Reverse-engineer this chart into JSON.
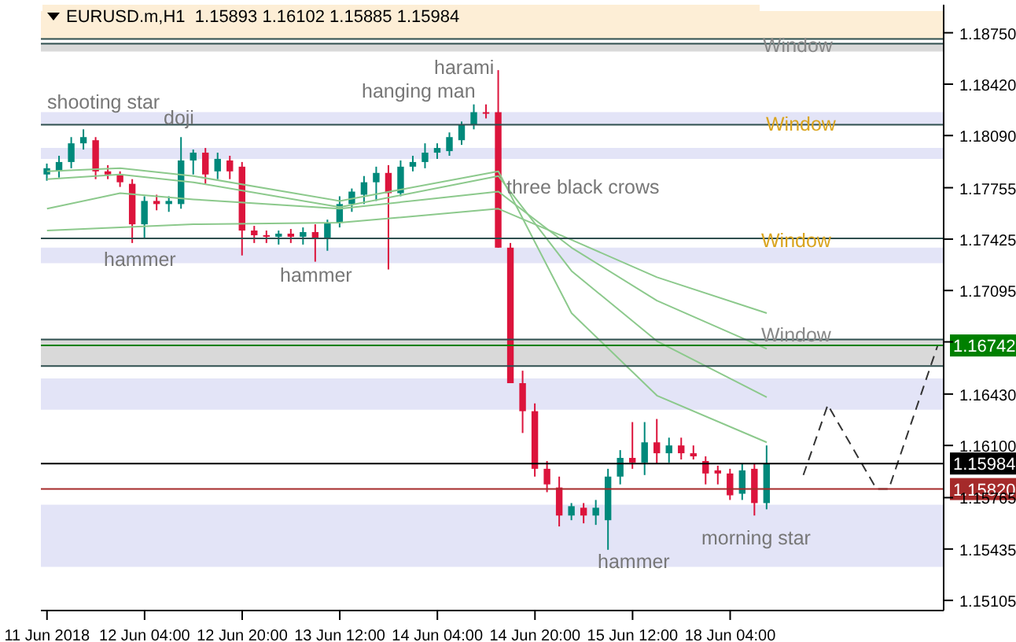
{
  "chart_data": {
    "type": "candlestick",
    "title": "EURUSD.m,H1  1.15893 1.16102 1.15885 1.15984",
    "categories": [
      "11 Jun 2018",
      null,
      null,
      null,
      null,
      null,
      null,
      null,
      "12 Jun 04:00",
      null,
      null,
      null,
      null,
      null,
      null,
      null,
      "12 Jun 20:00",
      null,
      null,
      null,
      null,
      null,
      null,
      null,
      "13 Jun 12:00",
      null,
      null,
      null,
      null,
      null,
      null,
      null,
      "14 Jun 04:00",
      null,
      null,
      null,
      null,
      null,
      null,
      null,
      "14 Jun 20:00",
      null,
      null,
      null,
      null,
      null,
      null,
      null,
      "15 Jun 12:00",
      null,
      null,
      null,
      null,
      null,
      null,
      null,
      "18 Jun 04:00",
      null,
      null,
      null,
      null,
      null,
      null,
      null,
      null,
      null,
      null,
      null,
      null,
      null,
      null,
      null,
      null,
      null
    ],
    "ohlc": [
      [
        1.1784,
        1.1791,
        1.178,
        1.1788
      ],
      [
        1.1786,
        1.1796,
        1.1782,
        1.1792
      ],
      [
        1.1792,
        1.1808,
        1.1788,
        1.1804
      ],
      [
        1.1804,
        1.1813,
        1.18,
        1.1808
      ],
      [
        1.1806,
        1.1808,
        1.1781,
        1.1786
      ],
      [
        1.1786,
        1.179,
        1.1781,
        1.1784
      ],
      [
        1.1784,
        1.1786,
        1.1776,
        1.1779
      ],
      [
        1.1778,
        1.1781,
        1.174,
        1.1752
      ],
      [
        1.1752,
        1.177,
        1.1743,
        1.1767
      ],
      [
        1.1767,
        1.1771,
        1.1761,
        1.1765
      ],
      [
        1.1765,
        1.177,
        1.176,
        1.1767
      ],
      [
        1.1765,
        1.1808,
        1.1762,
        1.1793
      ],
      [
        1.1793,
        1.18,
        1.1784,
        1.1798
      ],
      [
        1.1798,
        1.1801,
        1.1778,
        1.1784
      ],
      [
        1.1786,
        1.1798,
        1.1781,
        1.1794
      ],
      [
        1.1793,
        1.1796,
        1.1781,
        1.1786
      ],
      [
        1.1789,
        1.1792,
        1.1732,
        1.1748
      ],
      [
        1.1748,
        1.1751,
        1.174,
        1.1745
      ],
      [
        1.1745,
        1.1748,
        1.174,
        1.1744
      ],
      [
        1.1744,
        1.1748,
        1.1739,
        1.1746
      ],
      [
        1.1746,
        1.1749,
        1.174,
        1.1744
      ],
      [
        1.1744,
        1.175,
        1.1739,
        1.1747
      ],
      [
        1.1747,
        1.1752,
        1.1728,
        1.1743
      ],
      [
        1.1743,
        1.1755,
        1.1735,
        1.1753
      ],
      [
        1.1753,
        1.177,
        1.175,
        1.1765
      ],
      [
        1.1765,
        1.1775,
        1.176,
        1.1773
      ],
      [
        1.1771,
        1.1783,
        1.1765,
        1.1779
      ],
      [
        1.1779,
        1.1789,
        1.1767,
        1.1785
      ],
      [
        1.1785,
        1.179,
        1.1723,
        1.1772
      ],
      [
        1.1772,
        1.1793,
        1.177,
        1.1789
      ],
      [
        1.1789,
        1.1796,
        1.1786,
        1.1792
      ],
      [
        1.1792,
        1.1804,
        1.1788,
        1.1798
      ],
      [
        1.1798,
        1.1804,
        1.1794,
        1.1801
      ],
      [
        1.1799,
        1.1811,
        1.1796,
        1.1808
      ],
      [
        1.1806,
        1.1818,
        1.1803,
        1.1816
      ],
      [
        1.1816,
        1.1829,
        1.1813,
        1.1824
      ],
      [
        1.1824,
        1.1829,
        1.182,
        1.1823
      ],
      [
        1.1824,
        1.1851,
        1.1737,
        1.1737
      ],
      [
        1.1737,
        1.174,
        1.165,
        1.165
      ],
      [
        1.165,
        1.1658,
        1.1618,
        1.1632
      ],
      [
        1.1632,
        1.1637,
        1.159,
        1.1595
      ],
      [
        1.1595,
        1.16,
        1.158,
        1.1585
      ],
      [
        1.1583,
        1.159,
        1.1558,
        1.1565
      ],
      [
        1.1565,
        1.1573,
        1.1562,
        1.1571
      ],
      [
        1.157,
        1.1573,
        1.156,
        1.1565
      ],
      [
        1.1565,
        1.1575,
        1.1559,
        1.157
      ],
      [
        1.1562,
        1.1595,
        1.1543,
        1.159
      ],
      [
        1.159,
        1.1607,
        1.1585,
        1.1602
      ],
      [
        1.1602,
        1.1625,
        1.1595,
        1.1599
      ],
      [
        1.1599,
        1.1625,
        1.1591,
        1.1612
      ],
      [
        1.1612,
        1.1627,
        1.1598,
        1.1605
      ],
      [
        1.1605,
        1.1615,
        1.1599,
        1.161
      ],
      [
        1.161,
        1.1615,
        1.1601,
        1.1605
      ],
      [
        1.1605,
        1.161,
        1.1601,
        1.1603
      ],
      [
        1.16,
        1.1603,
        1.1585,
        1.1592
      ],
      [
        1.1594,
        1.1597,
        1.1585,
        1.1592
      ],
      [
        1.1592,
        1.1595,
        1.1575,
        1.1578
      ],
      [
        1.1579,
        1.1598,
        1.1575,
        1.1594
      ],
      [
        1.1595,
        1.1598,
        1.1565,
        1.1573
      ],
      [
        1.1573,
        1.161,
        1.1569,
        1.1598
      ],
      null,
      null,
      null,
      null,
      null,
      null,
      null,
      null,
      null,
      null,
      null,
      null,
      null,
      null
    ],
    "colors": [
      "#00897b",
      "#00897b",
      "#00897b",
      "#00897b",
      "#dc143c",
      "#dc143c",
      "#dc143c",
      "#dc143c",
      "#00897b",
      "#dc143c",
      "#00897b",
      "#00897b",
      "#00897b",
      "#dc143c",
      "#00897b",
      "#dc143c",
      "#dc143c",
      "#dc143c",
      "#dc143c",
      "#00897b",
      "#dc143c",
      "#00897b",
      "#dc143c",
      "#00897b",
      "#00897b",
      "#00897b",
      "#00897b",
      "#00897b",
      "#dc143c",
      "#00897b",
      "#00897b",
      "#00897b",
      "#00897b",
      "#00897b",
      "#00897b",
      "#00897b",
      "#dc143c",
      "#dc143c",
      "#dc143c",
      "#dc143c",
      "#dc143c",
      "#dc143c",
      "#dc143c",
      "#00897b",
      "#dc143c",
      "#00897b",
      "#00897b",
      "#00897b",
      "#dc143c",
      "#00897b",
      "#dc143c",
      "#00897b",
      "#dc143c",
      "#dc143c",
      "#dc143c",
      "#dc143c",
      "#dc143c",
      "#00897b",
      "#dc143c",
      "#00897b",
      null,
      null,
      null,
      null,
      null,
      null,
      null,
      null,
      null,
      null,
      null,
      null,
      null,
      null
    ],
    "series": [
      {
        "type": "line",
        "color": "#8cc98c",
        "values": [
          1.1786,
          null,
          null,
          null,
          null,
          null,
          1.1788,
          null,
          null,
          null,
          null,
          null,
          1.1783,
          null,
          null,
          null,
          null,
          null,
          null,
          null,
          null,
          null,
          null,
          null,
          1.1767,
          null,
          null,
          null,
          null,
          null,
          null,
          null,
          null,
          null,
          null,
          null,
          null,
          1.1786,
          null,
          null,
          null,
          null,
          null,
          1.1695,
          null,
          null,
          null,
          null,
          null,
          null,
          1.1642,
          null,
          null,
          null,
          null,
          null,
          null,
          null,
          null,
          1.1612,
          null,
          null,
          null,
          null,
          null,
          null,
          null,
          null,
          null,
          null,
          null,
          null,
          null,
          null
        ]
      },
      {
        "type": "line",
        "color": "#8cc98c",
        "values": [
          1.1781,
          null,
          null,
          null,
          null,
          null,
          1.1784,
          null,
          null,
          null,
          null,
          null,
          1.1779,
          null,
          null,
          null,
          null,
          null,
          null,
          null,
          null,
          null,
          null,
          null,
          1.1763,
          null,
          null,
          null,
          null,
          null,
          null,
          null,
          null,
          null,
          null,
          null,
          null,
          1.1783,
          null,
          null,
          null,
          null,
          null,
          1.1722,
          null,
          null,
          null,
          null,
          null,
          null,
          1.1677,
          null,
          null,
          null,
          null,
          null,
          null,
          null,
          null,
          1.1641,
          null,
          null,
          null,
          null,
          null,
          null,
          null,
          null,
          null,
          null,
          null,
          null,
          null,
          null
        ]
      },
      {
        "type": "line",
        "color": "#8cc98c",
        "values": [
          1.1762,
          null,
          null,
          null,
          null,
          null,
          1.1772,
          null,
          null,
          null,
          null,
          null,
          1.1768,
          null,
          null,
          null,
          null,
          null,
          null,
          null,
          null,
          null,
          null,
          null,
          1.1762,
          null,
          null,
          null,
          null,
          null,
          null,
          null,
          null,
          null,
          null,
          null,
          null,
          1.1773,
          null,
          null,
          null,
          null,
          null,
          1.1737,
          null,
          null,
          null,
          null,
          null,
          null,
          1.1703,
          null,
          null,
          null,
          null,
          null,
          null,
          null,
          null,
          1.1672,
          null,
          null,
          null,
          null,
          null,
          null,
          null,
          null,
          null,
          null,
          null,
          null,
          null,
          null
        ]
      },
      {
        "type": "line",
        "color": "#8cc98c",
        "values": [
          1.1748,
          null,
          null,
          null,
          null,
          null,
          1.175,
          null,
          null,
          null,
          null,
          null,
          1.1752,
          null,
          null,
          null,
          null,
          null,
          null,
          null,
          null,
          null,
          null,
          null,
          1.1753,
          null,
          null,
          null,
          null,
          null,
          null,
          null,
          null,
          null,
          null,
          null,
          null,
          1.1762,
          null,
          null,
          null,
          null,
          null,
          1.1742,
          null,
          null,
          null,
          null,
          null,
          null,
          1.1718,
          null,
          null,
          null,
          null,
          null,
          null,
          null,
          null,
          1.1695,
          null,
          null,
          null,
          null,
          null,
          null,
          null,
          null,
          null,
          null,
          null,
          null,
          null,
          null
        ]
      },
      {
        "type": "line",
        "color": "#333333",
        "line_style": "dashed",
        "values": [
          null,
          null,
          null,
          null,
          null,
          null,
          null,
          null,
          null,
          null,
          null,
          null,
          null,
          null,
          null,
          null,
          null,
          null,
          null,
          null,
          null,
          null,
          null,
          null,
          null,
          null,
          null,
          null,
          null,
          null,
          null,
          null,
          null,
          null,
          null,
          null,
          null,
          null,
          null,
          null,
          null,
          null,
          null,
          null,
          null,
          null,
          null,
          null,
          null,
          null,
          null,
          null,
          null,
          null,
          null,
          null,
          null,
          null,
          null,
          null,
          null,
          null,
          1.1591,
          null,
          1.1636,
          null,
          null,
          null,
          1.1582,
          1.1582,
          null,
          null,
          null,
          1.1674
        ]
      }
    ],
    "ylim": [
      1.1504,
      1.1893
    ],
    "yticks": [
      {
        "value": 1.1875,
        "label": "1.18750"
      },
      {
        "value": 1.1842,
        "label": "1.18420"
      },
      {
        "value": 1.1809,
        "label": "1.18090"
      },
      1.17755,
      1.17425,
      1.17095,
      {
        "value": 1.16765,
        "label": null
      },
      {
        "value": 1.1643,
        "label": "1.16430"
      },
      {
        "value": 1.161,
        "label": "1.16100"
      },
      1.15765,
      1.15435,
      1.15105
    ],
    "bands": [
      {
        "axis": "y",
        "from": 1.1871,
        "to": 1.1889,
        "color": "#fdeed6"
      },
      {
        "axis": "y",
        "from": 1.1863,
        "to": 1.1868,
        "color": "#d9d9d9"
      },
      {
        "axis": "y",
        "from": 1.1816,
        "to": 1.1824,
        "color": "#e3e4f7"
      },
      {
        "axis": "y",
        "from": 1.1794,
        "to": 1.1801,
        "color": "#e3e4f7"
      },
      {
        "axis": "y",
        "from": 1.1727,
        "to": 1.1737,
        "color": "#e3e4f7"
      },
      {
        "axis": "y",
        "from": 1.1661,
        "to": 1.1678,
        "color": "#d9d9d9"
      },
      {
        "axis": "y",
        "from": 1.1633,
        "to": 1.1653,
        "color": "#e3e4f7"
      },
      {
        "axis": "y",
        "from": 1.1532,
        "to": 1.1572,
        "color": "#e3e4f7"
      }
    ],
    "ref_lines": [
      {
        "axis": "y",
        "value": 1.1871,
        "color": "#2f4f4f"
      },
      {
        "axis": "y",
        "value": 1.1868,
        "color": "#2f4f4f"
      },
      {
        "axis": "y",
        "value": 1.1816,
        "color": "#2f4f4f"
      },
      {
        "axis": "y",
        "value": 1.1743,
        "color": "#2f4f4f"
      },
      {
        "axis": "y",
        "value": 1.1678,
        "color": "#2f4f4f"
      },
      {
        "axis": "y",
        "value": 1.1661,
        "color": "#2f4f4f"
      },
      {
        "axis": "y",
        "value": 1.16742,
        "label": "1.16742",
        "color": "#008000"
      },
      {
        "axis": "y",
        "value": 1.15984,
        "label": "1.15984",
        "color": "#000000"
      },
      {
        "axis": "y",
        "value": 1.1582,
        "label": "1.15820",
        "color": "#a52a2a"
      }
    ],
    "annotations": [
      "shooting star",
      {
        "text": "doji",
        "y": 1.1801
      },
      "harami",
      "hanging man",
      "three black crows",
      "hammer",
      "hammer",
      "hammer",
      {
        "text": "morning star",
        "y": 1.1565
      },
      "Window",
      "Window",
      "Window",
      "Window"
    ],
    "grid": false
  }
}
